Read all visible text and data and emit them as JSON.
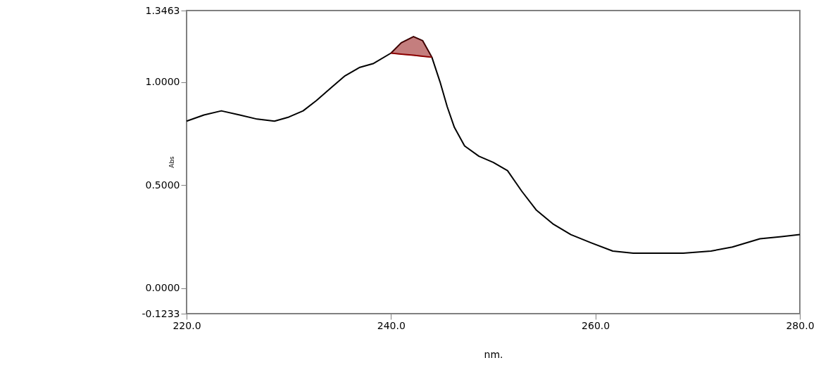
{
  "chart_data": {
    "type": "line",
    "xlabel": "nm.",
    "ylabel": "Abs",
    "xlim": [
      220.0,
      280.0
    ],
    "ylim": [
      -0.1233,
      1.3463
    ],
    "xticks": [
      {
        "value": 220,
        "label": "220.0"
      },
      {
        "value": 240,
        "label": "240.0"
      },
      {
        "value": 260,
        "label": "260.0"
      },
      {
        "value": 280,
        "label": "280.0"
      }
    ],
    "yticks": [
      {
        "value": -0.1233,
        "label": "-0.1233"
      },
      {
        "value": 0,
        "label": "0.0000"
      },
      {
        "value": 0.5,
        "label": "0.5000"
      },
      {
        "value": 1.0,
        "label": "1.0000"
      },
      {
        "value": 1.3463,
        "label": "1.3463"
      }
    ],
    "grid": false,
    "series": [
      {
        "color": "#000000",
        "x": [
          220.0,
          221.7,
          223.4,
          225.2,
          226.9,
          228.6,
          230.0,
          231.4,
          232.7,
          234.1,
          235.5,
          236.9,
          238.3,
          240.0,
          241.0,
          242.2,
          243.1,
          244.0,
          244.8,
          245.5,
          246.2,
          247.2,
          248.6,
          250.0,
          251.4,
          252.8,
          254.2,
          255.9,
          257.6,
          259.6,
          261.7,
          263.7,
          268.6,
          271.3,
          273.4,
          276.1,
          278.2,
          280.0
        ],
        "values": [
          0.81,
          0.84,
          0.86,
          0.84,
          0.82,
          0.81,
          0.83,
          0.86,
          0.91,
          0.97,
          1.03,
          1.07,
          1.09,
          1.14,
          1.19,
          1.22,
          1.2,
          1.12,
          1.0,
          0.88,
          0.78,
          0.69,
          0.64,
          0.61,
          0.57,
          0.47,
          0.38,
          0.31,
          0.26,
          0.22,
          0.18,
          0.17,
          0.17,
          0.18,
          0.2,
          0.24,
          0.25,
          0.26
        ]
      },
      {
        "type": "line",
        "color": "#8b0000",
        "x": [
          240.0,
          241.0,
          242.2,
          243.1,
          244.0
        ],
        "values": [
          1.14,
          1.135,
          1.13,
          1.125,
          1.12
        ],
        "lower": [
          1.14,
          1.135,
          1.13,
          1.125,
          1.12
        ],
        "upper": [
          1.14,
          1.19,
          1.22,
          1.2,
          1.12
        ]
      }
    ]
  }
}
